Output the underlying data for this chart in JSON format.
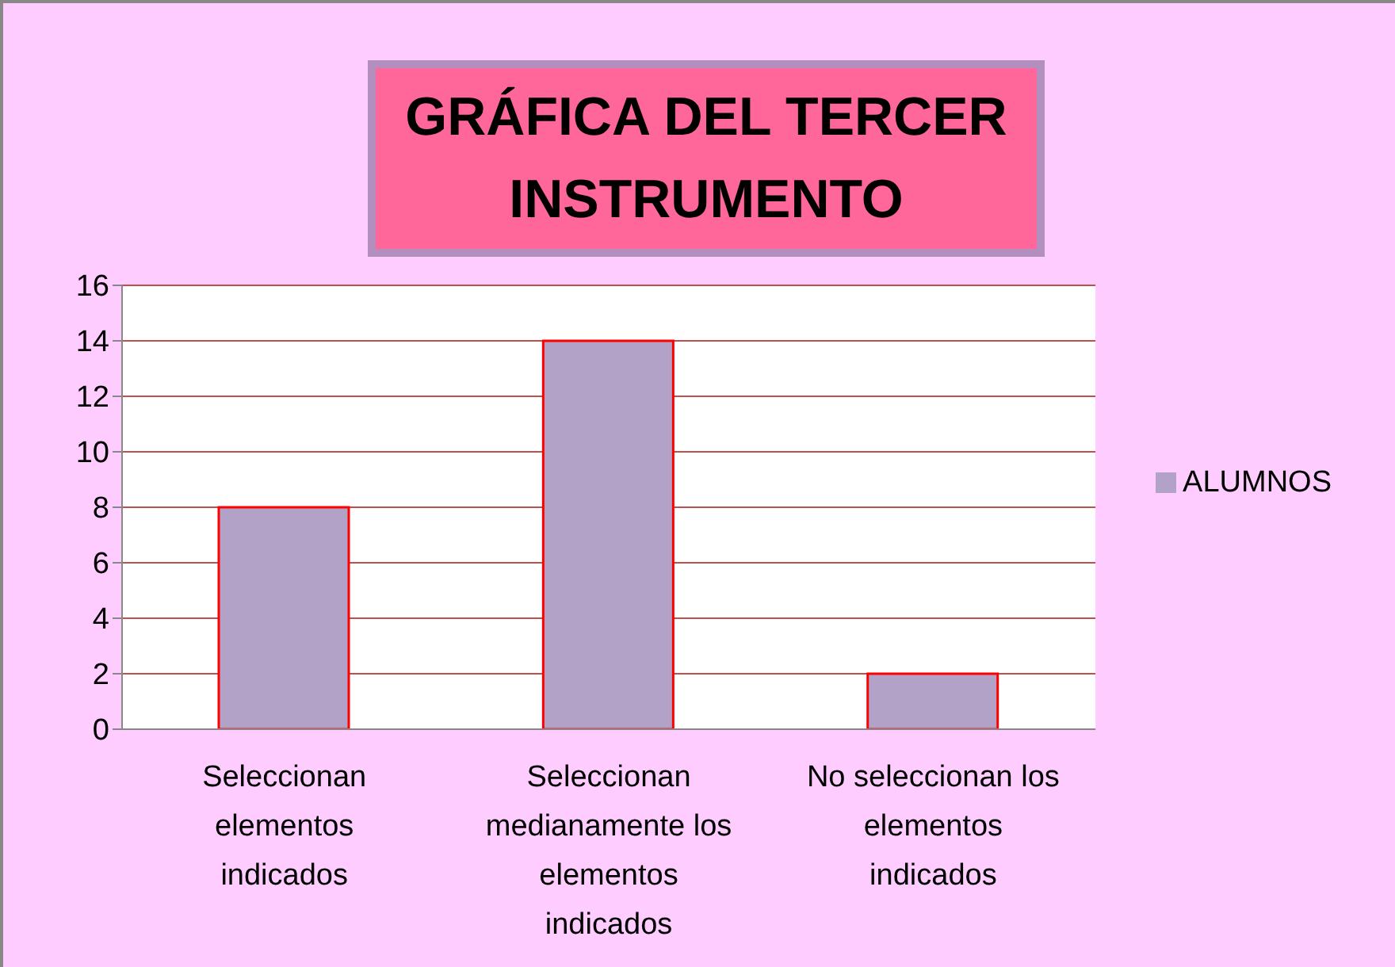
{
  "chart_data": {
    "type": "bar",
    "title": "GRÁFICA DEL TERCER INSTRUMENTO",
    "categories": [
      "Seleccionan elementos indicados",
      "Seleccionan medianamente los elementos indicados",
      "No seleccionan los elementos indicados"
    ],
    "series": [
      {
        "name": "ALUMNOS",
        "color": "#b3a2c7",
        "values": [
          8,
          14,
          2
        ]
      }
    ],
    "ylim": [
      0,
      16
    ],
    "yticks": [
      0,
      2,
      4,
      6,
      8,
      10,
      12,
      14,
      16
    ],
    "grid": "y",
    "legend": "right"
  }
}
